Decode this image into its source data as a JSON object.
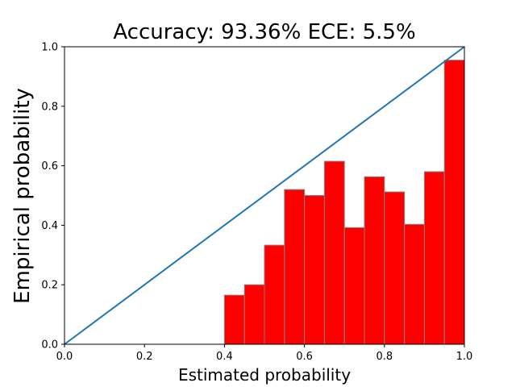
{
  "chart_data": {
    "type": "bar",
    "title": "Accuracy: 93.36% ECE: 5.5%",
    "xlabel": "Estimated probability",
    "ylabel": "Empirical probability",
    "xlim": [
      0,
      1
    ],
    "ylim": [
      0,
      1
    ],
    "xticks": [
      "0.0",
      "0.2",
      "0.4",
      "0.6",
      "0.8",
      "1.0"
    ],
    "yticks": [
      "0.0",
      "0.2",
      "0.4",
      "0.6",
      "0.8",
      "1.0"
    ],
    "bin_width": 0.05,
    "bins": [
      {
        "x": 0.4,
        "value": 0.165
      },
      {
        "x": 0.45,
        "value": 0.2
      },
      {
        "x": 0.5,
        "value": 0.333
      },
      {
        "x": 0.55,
        "value": 0.52
      },
      {
        "x": 0.6,
        "value": 0.5
      },
      {
        "x": 0.65,
        "value": 0.615
      },
      {
        "x": 0.7,
        "value": 0.392
      },
      {
        "x": 0.75,
        "value": 0.563
      },
      {
        "x": 0.8,
        "value": 0.512
      },
      {
        "x": 0.85,
        "value": 0.403
      },
      {
        "x": 0.9,
        "value": 0.58
      },
      {
        "x": 0.95,
        "value": 0.955
      }
    ],
    "reference_line": {
      "from": [
        0,
        0
      ],
      "to": [
        1,
        1
      ],
      "color": "#1f77b4"
    },
    "bar_color": "#ff0000",
    "bar_edge_color": "#808080",
    "grid": false
  }
}
